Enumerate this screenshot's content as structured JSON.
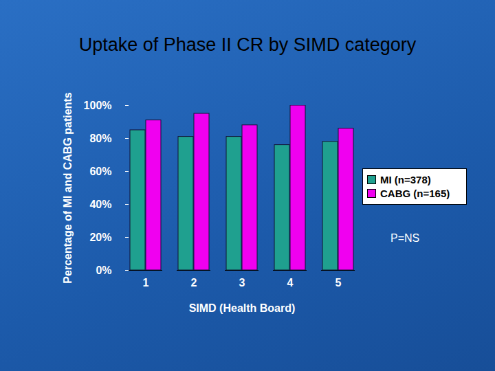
{
  "chart_data": {
    "type": "bar",
    "title": "Uptake of Phase II CR by SIMD category",
    "x_label": "SIMD (Health Board)",
    "y_label": "Percentage of MI and CABG patients",
    "categories": [
      "1",
      "2",
      "3",
      "4",
      "5"
    ],
    "series": [
      {
        "name": "MI (n=378)",
        "color": "#1fa08f",
        "values": [
          85,
          81,
          81,
          76,
          78
        ]
      },
      {
        "name": "CABG (n=165)",
        "color": "#f000f0",
        "values": [
          91,
          95,
          88,
          100,
          86
        ]
      }
    ],
    "ylim": [
      0,
      100
    ],
    "yticks": [
      {
        "value": 0,
        "label": "0%"
      },
      {
        "value": 20,
        "label": "20%"
      },
      {
        "value": 40,
        "label": "40%"
      },
      {
        "value": 60,
        "label": "60%"
      },
      {
        "value": 80,
        "label": "80%"
      },
      {
        "value": 100,
        "label": "100%"
      }
    ],
    "legend": "right",
    "annotations": [
      "P=NS"
    ]
  }
}
